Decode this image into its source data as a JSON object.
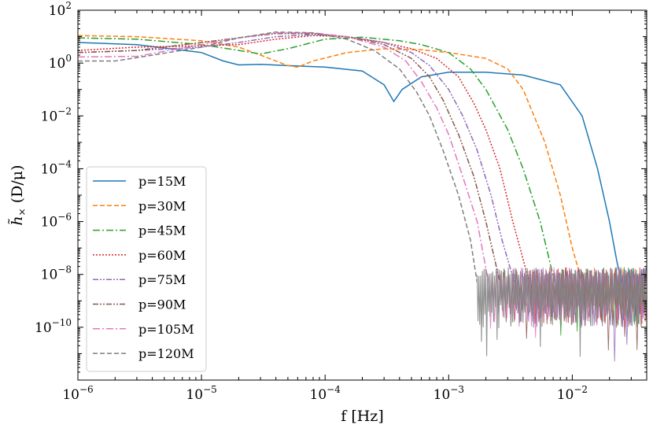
{
  "chart_data": {
    "type": "line",
    "title": "",
    "xlabel": "f [Hz]",
    "ylabel_main": "h̃",
    "ylabel_sub": "×",
    "ylabel_units": "(D/μ)",
    "xscale": "log",
    "yscale": "log",
    "xlim": [
      1e-06,
      0.04
    ],
    "ylim": [
      1e-12,
      100
    ],
    "x_ticks": [
      {
        "value": 1e-06,
        "base": "10",
        "exp": "−6"
      },
      {
        "value": 1e-05,
        "base": "10",
        "exp": "−5"
      },
      {
        "value": 0.0001,
        "base": "10",
        "exp": "−4"
      },
      {
        "value": 0.001,
        "base": "10",
        "exp": "−3"
      },
      {
        "value": 0.01,
        "base": "10",
        "exp": "−2"
      }
    ],
    "y_ticks": [
      {
        "value": 100,
        "base": "10",
        "exp": "2"
      },
      {
        "value": 1,
        "base": "10",
        "exp": "0"
      },
      {
        "value": 0.01,
        "base": "10",
        "exp": "−2"
      },
      {
        "value": 0.0001,
        "base": "10",
        "exp": "−4"
      },
      {
        "value": 1e-06,
        "base": "10",
        "exp": "−6"
      },
      {
        "value": 1e-08,
        "base": "10",
        "exp": "−8"
      },
      {
        "value": 1e-10,
        "base": "10",
        "exp": "−10"
      }
    ],
    "noise_floor": {
      "x_start_by_series": [
        0.025,
        0.012,
        0.0072,
        0.0045,
        0.0034,
        0.0026,
        0.0021,
        0.0017
      ],
      "level": 3e-09
    },
    "legend_position": "lower-left",
    "series": [
      {
        "name": "p=15M",
        "color": "#1f77b4",
        "dash": "solid",
        "points": [
          [
            1e-06,
            6
          ],
          [
            3e-06,
            5
          ],
          [
            1e-05,
            2.5
          ],
          [
            1.5e-05,
            1.2
          ],
          [
            2e-05,
            0.85
          ],
          [
            3e-05,
            0.9
          ],
          [
            5e-05,
            0.8
          ],
          [
            0.0001,
            0.7
          ],
          [
            0.0002,
            0.5
          ],
          [
            0.0003,
            0.15
          ],
          [
            0.00036,
            0.035
          ],
          [
            0.00042,
            0.1
          ],
          [
            0.0006,
            0.3
          ],
          [
            0.001,
            0.45
          ],
          [
            0.002,
            0.45
          ],
          [
            0.004,
            0.35
          ],
          [
            0.008,
            0.15
          ],
          [
            0.012,
            0.01
          ],
          [
            0.016,
            0.0001
          ],
          [
            0.02,
            1e-06
          ],
          [
            0.023,
            3e-08
          ],
          [
            0.025,
            5e-09
          ]
        ]
      },
      {
        "name": "p=30M",
        "color": "#ff7f0e",
        "dash": "dashed",
        "points": [
          [
            1e-06,
            11
          ],
          [
            3e-06,
            10
          ],
          [
            1e-05,
            7
          ],
          [
            2e-05,
            4
          ],
          [
            3e-05,
            2
          ],
          [
            5e-05,
            0.8
          ],
          [
            6e-05,
            0.7
          ],
          [
            8e-05,
            1.2
          ],
          [
            0.00015,
            2.5
          ],
          [
            0.0003,
            3.5
          ],
          [
            0.0006,
            3.2
          ],
          [
            0.001,
            2.5
          ],
          [
            0.002,
            1.5
          ],
          [
            0.003,
            0.6
          ],
          [
            0.004,
            0.1
          ],
          [
            0.006,
            0.001
          ],
          [
            0.008,
            1e-05
          ],
          [
            0.01,
            1e-07
          ],
          [
            0.012,
            5e-09
          ]
        ]
      },
      {
        "name": "p=45M",
        "color": "#2ca02c",
        "dash": "dashdot",
        "points": [
          [
            1e-06,
            9
          ],
          [
            3e-06,
            8
          ],
          [
            1e-05,
            5
          ],
          [
            2e-05,
            3
          ],
          [
            3e-05,
            2.2
          ],
          [
            5e-05,
            3.5
          ],
          [
            0.0001,
            8
          ],
          [
            0.0002,
            9.5
          ],
          [
            0.0004,
            7
          ],
          [
            0.0006,
            5
          ],
          [
            0.001,
            2.5
          ],
          [
            0.0015,
            0.6
          ],
          [
            0.002,
            0.1
          ],
          [
            0.003,
            0.003
          ],
          [
            0.004,
            0.0001
          ],
          [
            0.0055,
            1e-06
          ],
          [
            0.0072,
            5e-09
          ]
        ]
      },
      {
        "name": "p=60M",
        "color": "#d62728",
        "dash": "dotted",
        "points": [
          [
            1e-06,
            3
          ],
          [
            3e-06,
            4
          ],
          [
            1e-05,
            4.5
          ],
          [
            2e-05,
            5
          ],
          [
            4e-05,
            8
          ],
          [
            8e-05,
            11
          ],
          [
            0.00015,
            10
          ],
          [
            0.0003,
            6
          ],
          [
            0.0005,
            3.5
          ],
          [
            0.0008,
            1.5
          ],
          [
            0.0012,
            0.3
          ],
          [
            0.0016,
            0.03
          ],
          [
            0.002,
            0.003
          ],
          [
            0.0026,
            0.0001
          ],
          [
            0.0033,
            1e-06
          ],
          [
            0.0045,
            5e-09
          ]
        ]
      },
      {
        "name": "p=75M",
        "color": "#9467bd",
        "dash": "dashdotdot",
        "points": [
          [
            1e-06,
            2.5
          ],
          [
            3e-06,
            3
          ],
          [
            1e-05,
            4
          ],
          [
            2e-05,
            6
          ],
          [
            4e-05,
            10
          ],
          [
            8e-05,
            12
          ],
          [
            0.00015,
            10
          ],
          [
            0.0003,
            6
          ],
          [
            0.0005,
            2.5
          ],
          [
            0.0007,
            0.8
          ],
          [
            0.001,
            0.1
          ],
          [
            0.0013,
            0.01
          ],
          [
            0.0017,
            0.0005
          ],
          [
            0.0022,
            1e-05
          ],
          [
            0.0027,
            2e-07
          ],
          [
            0.0034,
            5e-09
          ]
        ]
      },
      {
        "name": "p=90M",
        "color": "#8c564b",
        "dash": "dashdotdot",
        "points": [
          [
            1e-06,
            2.5
          ],
          [
            3e-06,
            3
          ],
          [
            1e-05,
            6
          ],
          [
            2e-05,
            9
          ],
          [
            4e-05,
            13
          ],
          [
            8e-05,
            13
          ],
          [
            0.00015,
            10
          ],
          [
            0.0003,
            5
          ],
          [
            0.0005,
            1.5
          ],
          [
            0.0007,
            0.3
          ],
          [
            0.0009,
            0.04
          ],
          [
            0.0012,
            0.002
          ],
          [
            0.0016,
            5e-05
          ],
          [
            0.002,
            1e-06
          ],
          [
            0.0026,
            5e-09
          ]
        ]
      },
      {
        "name": "p=105M",
        "color": "#e377c2",
        "dash": "dashdot",
        "points": [
          [
            1e-06,
            1.7
          ],
          [
            3e-06,
            1.8
          ],
          [
            1e-05,
            5
          ],
          [
            2e-05,
            9
          ],
          [
            4e-05,
            14
          ],
          [
            8e-05,
            14
          ],
          [
            0.00015,
            10
          ],
          [
            0.0003,
            4
          ],
          [
            0.00045,
            1.2
          ],
          [
            0.0006,
            0.2
          ],
          [
            0.0008,
            0.02
          ],
          [
            0.001,
            0.002
          ],
          [
            0.0013,
            5e-05
          ],
          [
            0.0017,
            1e-06
          ],
          [
            0.0021,
            5e-09
          ]
        ]
      },
      {
        "name": "p=120M",
        "color": "#7f7f7f",
        "dash": "dashed",
        "points": [
          [
            1e-06,
            1.2
          ],
          [
            2e-06,
            1.2
          ],
          [
            3e-06,
            1.6
          ],
          [
            1e-05,
            4
          ],
          [
            2e-05,
            9
          ],
          [
            4e-05,
            15
          ],
          [
            8e-05,
            14
          ],
          [
            0.00015,
            8
          ],
          [
            0.00025,
            3
          ],
          [
            0.0004,
            0.6
          ],
          [
            0.00055,
            0.08
          ],
          [
            0.0007,
            0.01
          ],
          [
            0.0009,
            0.0005
          ],
          [
            0.0012,
            1e-05
          ],
          [
            0.0015,
            2e-07
          ],
          [
            0.0017,
            5e-09
          ]
        ]
      }
    ]
  }
}
